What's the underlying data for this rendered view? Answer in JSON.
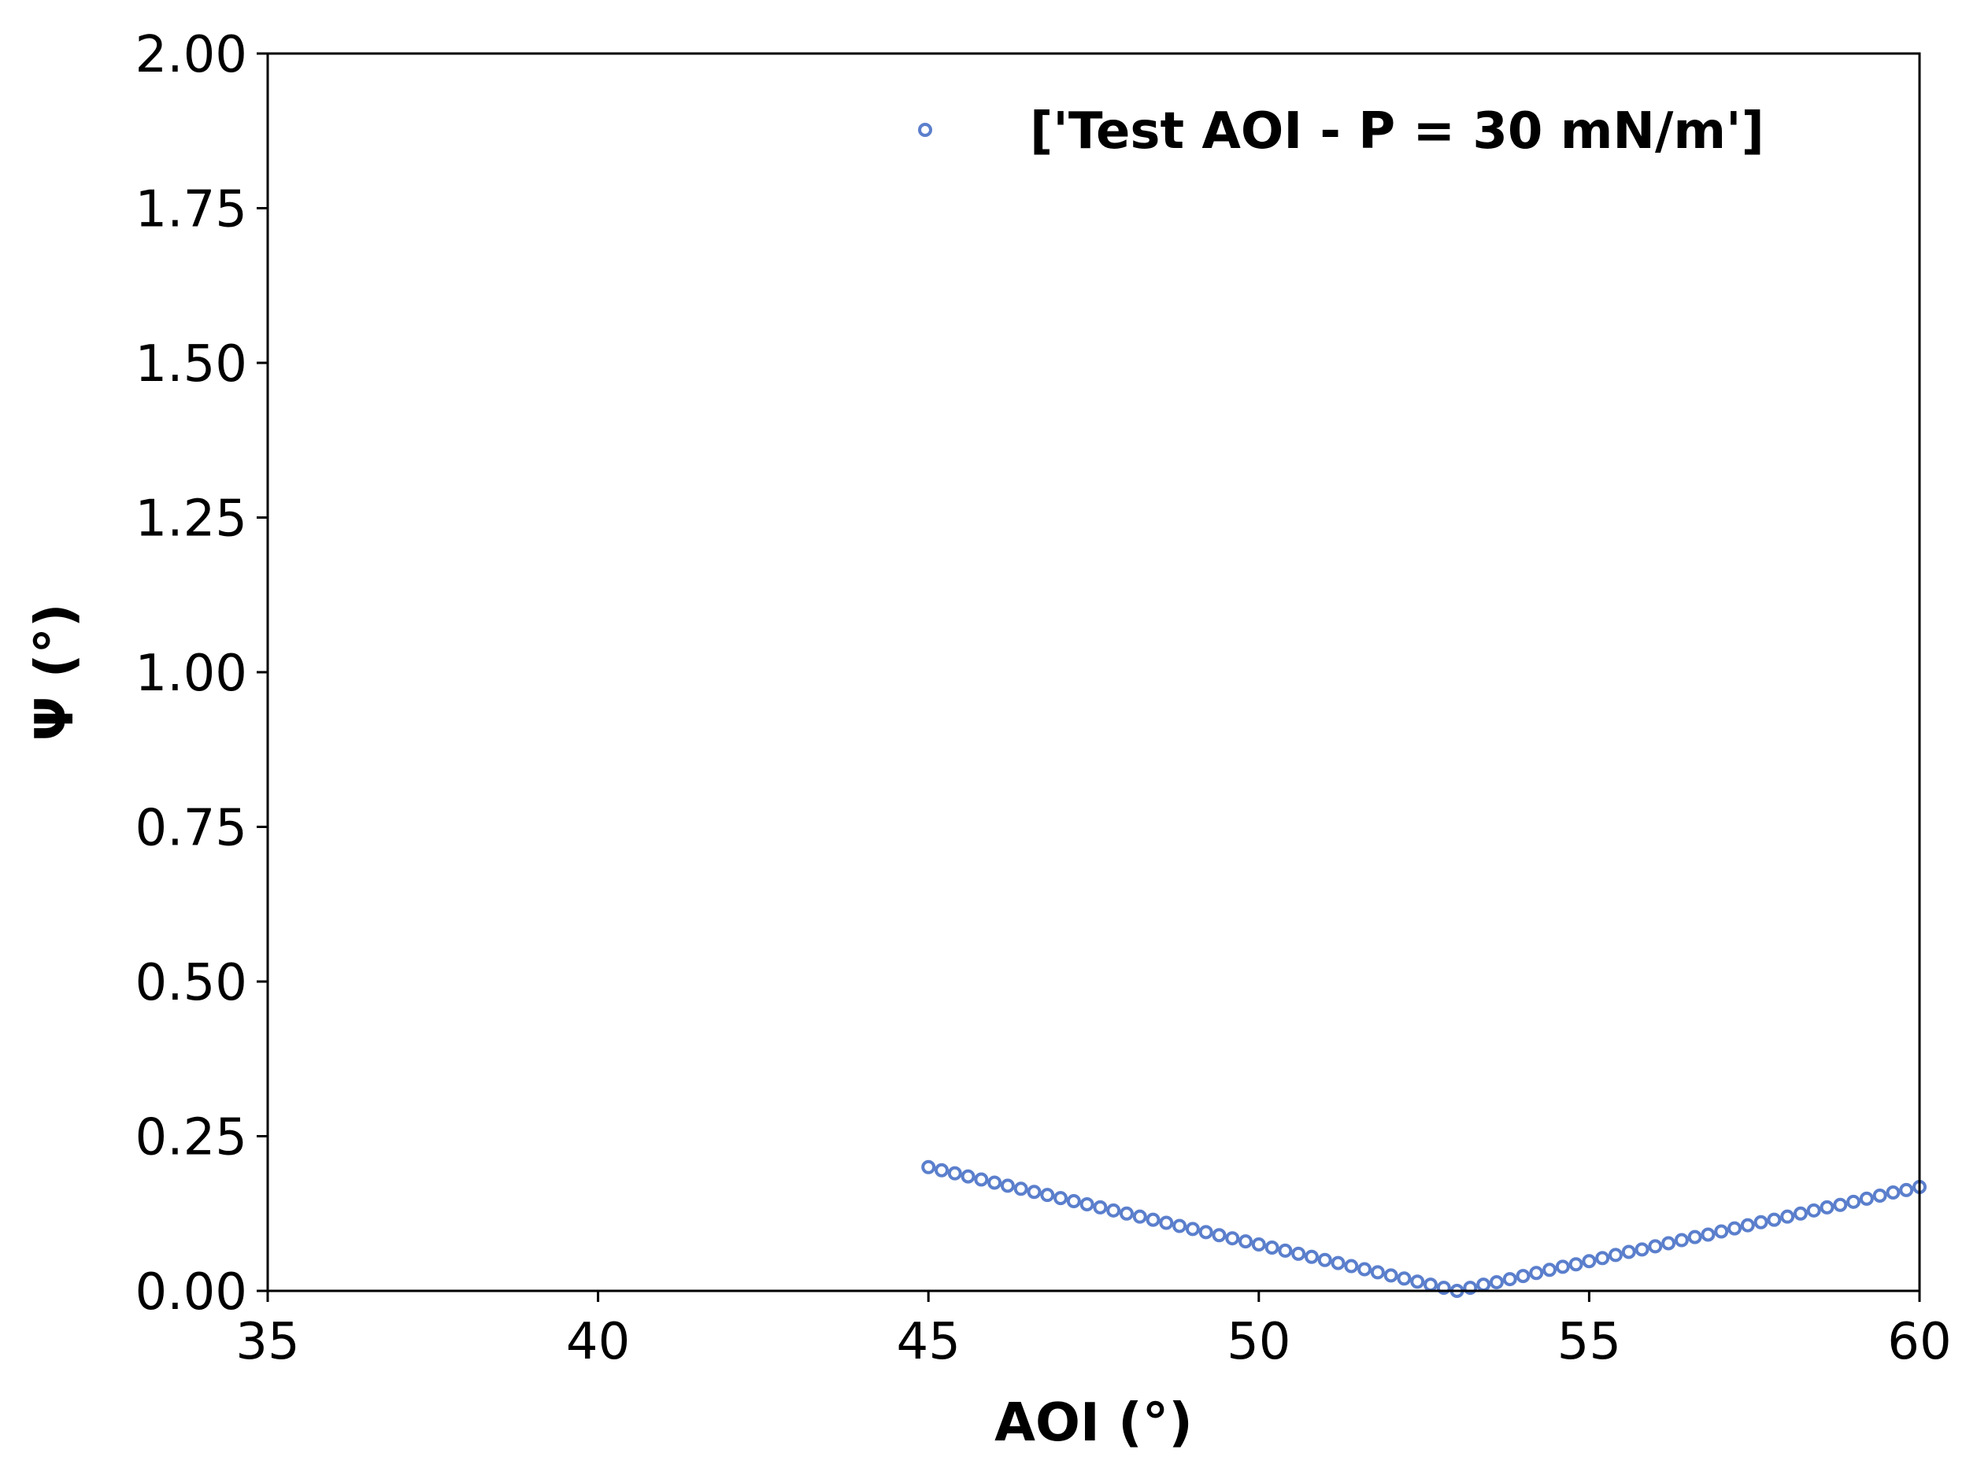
{
  "chart_data": {
    "type": "scatter",
    "title": "",
    "xlabel": "AOI (°)",
    "ylabel": "Ψ (°)",
    "xlim": [
      35,
      60
    ],
    "ylim": [
      0,
      2
    ],
    "x_ticks": [
      "35",
      "40",
      "45",
      "50",
      "55",
      "60"
    ],
    "y_ticks": [
      "0.00",
      "0.25",
      "0.50",
      "0.75",
      "1.00",
      "1.25",
      "1.50",
      "1.75",
      "2.00"
    ],
    "grid": false,
    "legend_position": "top-right",
    "series": [
      {
        "name": "['Test AOI - P = 30 mN/m']",
        "color": "#5b7fcc",
        "marker": "hollow-circle",
        "x_start": 45,
        "x_end": 60,
        "x_step": 0.2,
        "description_of_shape": "",
        "points": [
          [
            45.0,
            0.2
          ],
          [
            45.2,
            0.195
          ],
          [
            45.4,
            0.19
          ],
          [
            45.6,
            0.185
          ],
          [
            45.8,
            0.18
          ],
          [
            46.0,
            0.175
          ],
          [
            46.2,
            0.17
          ],
          [
            46.4,
            0.165
          ],
          [
            46.6,
            0.16
          ],
          [
            46.8,
            0.155
          ],
          [
            47.0,
            0.15
          ],
          [
            47.2,
            0.145
          ],
          [
            47.4,
            0.14
          ],
          [
            47.6,
            0.135
          ],
          [
            47.8,
            0.13
          ],
          [
            48.0,
            0.125
          ],
          [
            48.2,
            0.12
          ],
          [
            48.4,
            0.115
          ],
          [
            48.6,
            0.11
          ],
          [
            48.8,
            0.105
          ],
          [
            49.0,
            0.1
          ],
          [
            49.2,
            0.095
          ],
          [
            49.4,
            0.09
          ],
          [
            49.6,
            0.085
          ],
          [
            49.8,
            0.08
          ],
          [
            50.0,
            0.075
          ],
          [
            50.2,
            0.07
          ],
          [
            50.4,
            0.065
          ],
          [
            50.6,
            0.06
          ],
          [
            50.8,
            0.055
          ],
          [
            51.0,
            0.05
          ],
          [
            51.2,
            0.045
          ],
          [
            51.4,
            0.04
          ],
          [
            51.6,
            0.035
          ],
          [
            51.8,
            0.03
          ],
          [
            52.0,
            0.025
          ],
          [
            52.2,
            0.02
          ],
          [
            52.4,
            0.015
          ],
          [
            52.6,
            0.01
          ],
          [
            52.8,
            0.005
          ],
          [
            53.0,
            0.0
          ],
          [
            53.2,
            0.005
          ],
          [
            53.4,
            0.01
          ],
          [
            53.6,
            0.014
          ],
          [
            53.8,
            0.019
          ],
          [
            54.0,
            0.024
          ],
          [
            54.2,
            0.029
          ],
          [
            54.4,
            0.034
          ],
          [
            54.6,
            0.039
          ],
          [
            54.8,
            0.043
          ],
          [
            55.0,
            0.048
          ],
          [
            55.2,
            0.053
          ],
          [
            55.4,
            0.058
          ],
          [
            55.6,
            0.063
          ],
          [
            55.8,
            0.067
          ],
          [
            56.0,
            0.072
          ],
          [
            56.2,
            0.077
          ],
          [
            56.4,
            0.082
          ],
          [
            56.6,
            0.087
          ],
          [
            56.8,
            0.091
          ],
          [
            57.0,
            0.096
          ],
          [
            57.2,
            0.101
          ],
          [
            57.4,
            0.106
          ],
          [
            57.6,
            0.111
          ],
          [
            57.8,
            0.115
          ],
          [
            58.0,
            0.12
          ],
          [
            58.2,
            0.125
          ],
          [
            58.4,
            0.13
          ],
          [
            58.6,
            0.135
          ],
          [
            58.8,
            0.139
          ],
          [
            59.0,
            0.144
          ],
          [
            59.2,
            0.149
          ],
          [
            59.4,
            0.154
          ],
          [
            59.6,
            0.159
          ],
          [
            59.8,
            0.163
          ],
          [
            60.0,
            0.168
          ]
        ]
      }
    ]
  }
}
